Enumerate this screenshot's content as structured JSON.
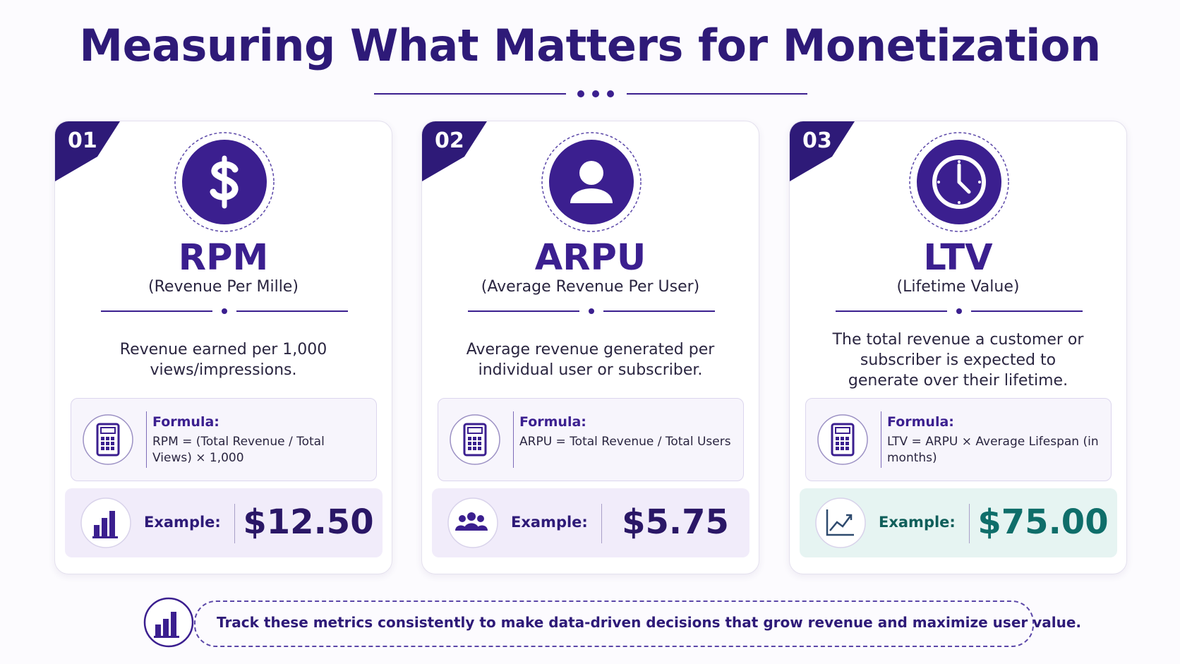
{
  "header": {
    "title": "Measuring What Matters for Monetization"
  },
  "cards": [
    {
      "number": "01",
      "acronym": "RPM",
      "full_name": "(Revenue Per Mille)",
      "description": "Revenue earned per 1,000 views/impressions.",
      "formula_label": "Formula:",
      "formula": "RPM = (Total Revenue / Total Views) × 1,000",
      "example_label": "Example:",
      "example_value": "$12.50"
    },
    {
      "number": "02",
      "acronym": "ARPU",
      "full_name": "(Average Revenue Per User)",
      "description": "Average revenue generated per individual user or subscriber.",
      "formula_label": "Formula:",
      "formula": "ARPU = Total Revenue / Total Users",
      "example_label": "Example:",
      "example_value": "$5.75"
    },
    {
      "number": "03",
      "acronym": "LTV",
      "full_name": "(Lifetime Value)",
      "description": "The total revenue a customer or subscriber is expected to generate over their lifetime.",
      "formula_label": "Formula:",
      "formula": "LTV = ARPU × Average Lifespan (in months)",
      "example_label": "Example:",
      "example_value": "$75.00"
    }
  ],
  "footer": {
    "text": "Track these metrics consistently to make data-driven decisions that grow revenue and maximize user value."
  }
}
